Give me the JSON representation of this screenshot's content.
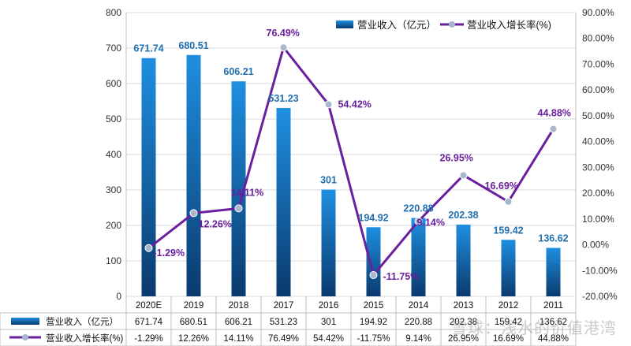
{
  "chart_data": {
    "type": "bar+line",
    "categories": [
      "2020E",
      "2019",
      "2018",
      "2017",
      "2016",
      "2015",
      "2014",
      "2013",
      "2012",
      "2011"
    ],
    "series": [
      {
        "name": "营业收入（亿元）",
        "type": "bar",
        "axis": "left",
        "values": [
          671.74,
          680.51,
          606.21,
          531.23,
          301,
          194.92,
          220.88,
          202.38,
          159.42,
          136.62
        ],
        "labels": [
          "671.74",
          "680.51",
          "606.21",
          "531.23",
          "301",
          "194.92",
          "220.88",
          "202.38",
          "159.42",
          "136.62"
        ]
      },
      {
        "name": "营业收入增长率(%)",
        "type": "line",
        "axis": "right",
        "values": [
          -1.29,
          12.26,
          14.11,
          76.49,
          54.42,
          -11.75,
          9.14,
          26.95,
          16.69,
          44.88
        ],
        "labels": [
          "-1.29%",
          "12.26%",
          "14.11%",
          "76.49%",
          "54.42%",
          "-11.75%",
          "9.14%",
          "26.95%",
          "16.69%",
          "44.88%"
        ]
      }
    ],
    "y_left": {
      "min": 0,
      "max": 800,
      "step": 100,
      "ticks": [
        "0",
        "100",
        "200",
        "300",
        "400",
        "500",
        "600",
        "700",
        "800"
      ]
    },
    "y_right": {
      "min": -20,
      "max": 90,
      "step": 10,
      "ticks": [
        "-20.00%",
        "-10.00%",
        "0.00%",
        "10.00%",
        "20.00%",
        "30.00%",
        "40.00%",
        "50.00%",
        "60.00%",
        "70.00%",
        "80.00%",
        "90.00%"
      ]
    },
    "legend_position": "top-right",
    "data_table": true,
    "colors": {
      "bar_top": "#1f8fe0",
      "bar_bottom": "#0a3a6e",
      "line": "#6a1f9e",
      "marker": "#a8b8cc",
      "bar_label": "#1f6fb3",
      "line_label": "#6a1f9e"
    }
  },
  "watermark": "雪球：浅水的价值港湾"
}
